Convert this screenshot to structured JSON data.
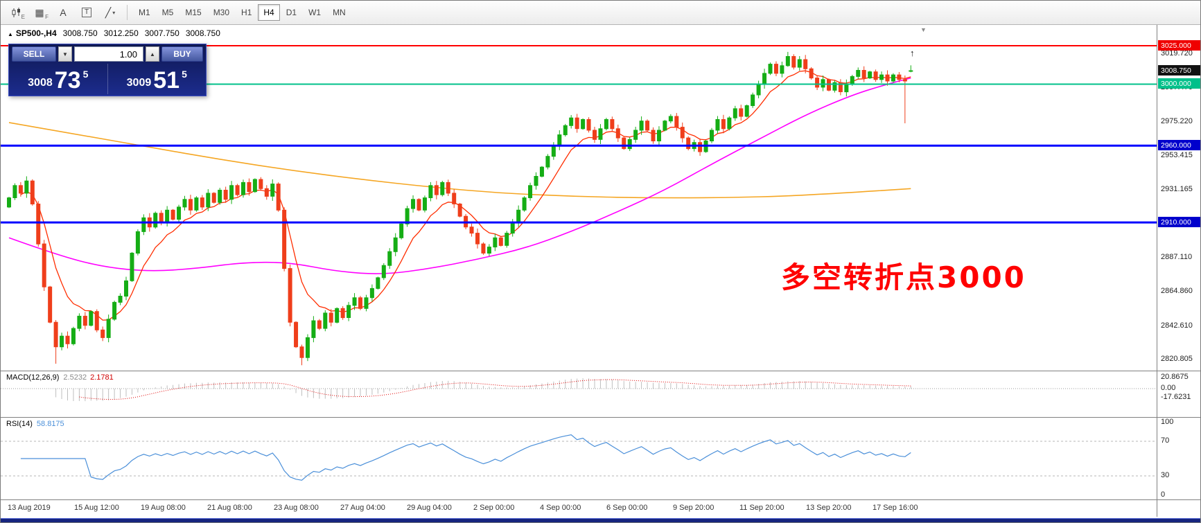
{
  "toolbar": {
    "icons": [
      {
        "name": "candlestick-chart-icon",
        "glyph": "",
        "letter": "E"
      },
      {
        "name": "grid-icon",
        "glyph": "▦",
        "letter": "F"
      },
      {
        "name": "text-label-icon",
        "glyph": "A",
        "letter": ""
      },
      {
        "name": "text-box-icon",
        "glyph": "T",
        "letter": ""
      },
      {
        "name": "draw-tools-icon",
        "glyph": "╱",
        "letter": "▾"
      }
    ],
    "timeframes": [
      {
        "label": "M1",
        "active": false
      },
      {
        "label": "M5",
        "active": false
      },
      {
        "label": "M15",
        "active": false
      },
      {
        "label": "M30",
        "active": false
      },
      {
        "label": "H1",
        "active": false
      },
      {
        "label": "H4",
        "active": true
      },
      {
        "label": "D1",
        "active": false
      },
      {
        "label": "W1",
        "active": false
      },
      {
        "label": "MN",
        "active": false
      }
    ]
  },
  "header": {
    "collapse_glyph": "▲",
    "symbol": "SP500-,H4",
    "open": "3008.750",
    "high": "3012.250",
    "low": "3007.750",
    "close": "3008.750"
  },
  "trade_panel": {
    "sell_label": "SELL",
    "buy_label": "BUY",
    "volume": "1.00",
    "step_down_glyph": "▼",
    "step_up_glyph": "▲",
    "bid_main": "3008",
    "bid_big": "73",
    "bid_sup": "5",
    "ask_main": "3009",
    "ask_big": "51",
    "ask_sup": "5"
  },
  "annotation": {
    "text": "多空转折点3000",
    "color": "#ff0000"
  },
  "markers": {
    "shift": "▼",
    "cursor": "↑"
  },
  "hlines": [
    {
      "price": 3025,
      "color": "#ff0000",
      "width": 2,
      "label": "3025.000"
    },
    {
      "price": 3000,
      "color": "#00c08a",
      "width": 2,
      "label": "3000.000"
    },
    {
      "price": 2960,
      "color": "#0000ff",
      "width": 3,
      "label": "2960.000"
    },
    {
      "price": 2910,
      "color": "#0000ff",
      "width": 3,
      "label": "2910.000"
    }
  ],
  "price_axis": {
    "badges": [
      {
        "label": "3025.000",
        "price": 3025,
        "bg": "#ef0000"
      },
      {
        "label": "3008.750",
        "price": 3008.75,
        "bg": "#111111"
      },
      {
        "label": "3000.000",
        "price": 3000,
        "bg": "#00c08a"
      },
      {
        "label": "2960.000",
        "price": 2960,
        "bg": "#0000cc"
      },
      {
        "label": "2910.000",
        "price": 2910,
        "bg": "#0000cc"
      }
    ],
    "labels": [
      {
        "label": "3019.720",
        "price": 3019.72
      },
      {
        "label": "2997.470",
        "price": 2997.47
      },
      {
        "label": "2975.220",
        "price": 2975.22
      },
      {
        "label": "2953.415",
        "price": 2953.415
      },
      {
        "label": "2931.165",
        "price": 2931.165
      },
      {
        "label": "2887.110",
        "price": 2887.11
      },
      {
        "label": "2864.860",
        "price": 2864.86
      },
      {
        "label": "2842.610",
        "price": 2842.61
      },
      {
        "label": "2820.805",
        "price": 2820.805
      }
    ]
  },
  "macd": {
    "title": "MACD(12,26,9)",
    "main": "2.5232",
    "signal": "2.1781",
    "axis_max": "20.8675",
    "axis_zero": "0.00",
    "axis_min": "-17.6231"
  },
  "rsi": {
    "title": "RSI(14)",
    "value": "58.8175",
    "axis": [
      "100",
      "70",
      "30",
      "0"
    ],
    "levels": [
      70,
      30
    ]
  },
  "time_axis": [
    "13 Aug 2019",
    "15 Aug 12:00",
    "19 Aug 08:00",
    "21 Aug 08:00",
    "23 Aug 08:00",
    "27 Aug 04:00",
    "29 Aug 04:00",
    "2 Sep 00:00",
    "4 Sep 00:00",
    "6 Sep 00:00",
    "9 Sep 20:00",
    "11 Sep 20:00",
    "13 Sep 20:00",
    "17 Sep 16:00"
  ],
  "colors": {
    "candle_up": "#15ad15",
    "candle_down": "#ef3e1b",
    "ma_fast": "#ff2d00",
    "ma_mid": "#ff00ff",
    "ma_slow": "#f5a623",
    "macd_hist": "#bfbfbf",
    "macd_signal": "#e00000",
    "macd_zero": "#9a9a9a",
    "rsi_line": "#4a8fd9",
    "rsi_level": "#b5b5b5",
    "accent_navy": "#16247e"
  },
  "chart_data": {
    "type": "candlestick",
    "symbol": "SP500-",
    "timeframe": "H4",
    "first_open": 2920,
    "closes": [
      2926,
      2934,
      2929,
      2937,
      2922,
      2896,
      2868,
      2845,
      2829,
      2836,
      2831,
      2841,
      2849,
      2843,
      2852,
      2840,
      2835,
      2847,
      2858,
      2862,
      2872,
      2890,
      2904,
      2913,
      2907,
      2916,
      2910,
      2918,
      2912,
      2920,
      2925,
      2918,
      2926,
      2920,
      2929,
      2923,
      2931,
      2925,
      2934,
      2928,
      2936,
      2930,
      2938,
      2932,
      2927,
      2935,
      2918,
      2880,
      2845,
      2829,
      2822,
      2835,
      2846,
      2841,
      2851,
      2845,
      2854,
      2848,
      2856,
      2861,
      2854,
      2861,
      2867,
      2874,
      2882,
      2891,
      2900,
      2909,
      2919,
      2925,
      2918,
      2926,
      2934,
      2928,
      2936,
      2929,
      2922,
      2914,
      2907,
      2903,
      2896,
      2890,
      2894,
      2900,
      2895,
      2903,
      2910,
      2918,
      2926,
      2934,
      2940,
      2946,
      2953,
      2960,
      2967,
      2973,
      2978,
      2971,
      2977,
      2970,
      2964,
      2971,
      2977,
      2971,
      2965,
      2958,
      2964,
      2970,
      2976,
      2970,
      2963,
      2970,
      2976,
      2979,
      2972,
      2965,
      2958,
      2962,
      2956,
      2963,
      2970,
      2977,
      2971,
      2978,
      2984,
      2979,
      2986,
      2993,
      3000,
      3007,
      3013,
      3007,
      3012,
      3018,
      3011,
      3016,
      3010,
      3004,
      2998,
      3003,
      2996,
      3001,
      2995,
      3000,
      3005,
      3009,
      3004,
      3008,
      3003,
      3006,
      3002,
      3006,
      3003,
      3002,
      3008.75
    ],
    "special_lows": {
      "8": 2818,
      "50": 2817,
      "153": 2974.5
    },
    "special_highs": {
      "133": 3021
    },
    "last_candle": {
      "open": 3008.75,
      "high": 3012.25,
      "low": 3007.75,
      "close": 3008.75
    },
    "ma_slow": [
      [
        0,
        2975
      ],
      [
        12,
        2967
      ],
      [
        24,
        2959
      ],
      [
        36,
        2951
      ],
      [
        48,
        2944
      ],
      [
        60,
        2938
      ],
      [
        72,
        2933
      ],
      [
        84,
        2929
      ],
      [
        96,
        2927
      ],
      [
        108,
        2926
      ],
      [
        120,
        2926
      ],
      [
        132,
        2927
      ],
      [
        142,
        2929
      ],
      [
        154,
        2932
      ]
    ],
    "ma_mid": [
      [
        0,
        2900
      ],
      [
        8,
        2889
      ],
      [
        16,
        2881
      ],
      [
        24,
        2878
      ],
      [
        32,
        2880
      ],
      [
        40,
        2884
      ],
      [
        48,
        2884
      ],
      [
        56,
        2878
      ],
      [
        64,
        2876
      ],
      [
        72,
        2880
      ],
      [
        80,
        2886
      ],
      [
        88,
        2893
      ],
      [
        96,
        2904
      ],
      [
        104,
        2917
      ],
      [
        112,
        2931
      ],
      [
        120,
        2948
      ],
      [
        128,
        2964
      ],
      [
        136,
        2980
      ],
      [
        144,
        2993
      ],
      [
        150,
        3000
      ],
      [
        154,
        3004
      ]
    ]
  }
}
